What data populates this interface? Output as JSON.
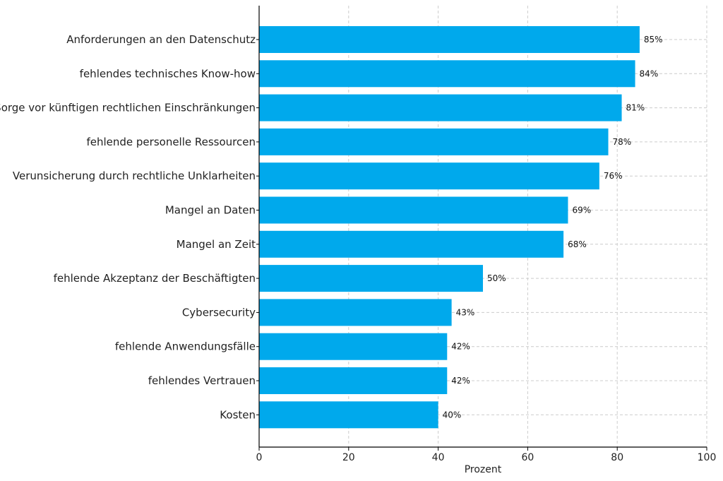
{
  "chart_data": {
    "type": "bar",
    "orientation": "horizontal",
    "categories": [
      "Anforderungen an den Datenschutz",
      "fehlendes technisches Know-how",
      "Sorge vor künftigen rechtlichen Einschränkungen",
      "fehlende personelle Ressourcen",
      "Verunsicherung durch rechtliche Unklarheiten",
      "Mangel an Daten",
      "Mangel an Zeit",
      "fehlende Akzeptanz der Beschäftigten",
      "Cybersecurity",
      "fehlende Anwendungsfälle",
      "fehlendes Vertrauen",
      "Kosten"
    ],
    "values": [
      85,
      84,
      81,
      78,
      76,
      69,
      68,
      50,
      43,
      42,
      42,
      40
    ],
    "value_labels": [
      "85%",
      "84%",
      "81%",
      "78%",
      "76%",
      "69%",
      "68%",
      "50%",
      "43%",
      "42%",
      "42%",
      "40%"
    ],
    "xlabel": "Prozent",
    "xlim": [
      0,
      100
    ],
    "xticks": [
      0,
      20,
      40,
      60,
      80,
      100
    ],
    "grid": true,
    "bar_color": "#00a9ec"
  }
}
